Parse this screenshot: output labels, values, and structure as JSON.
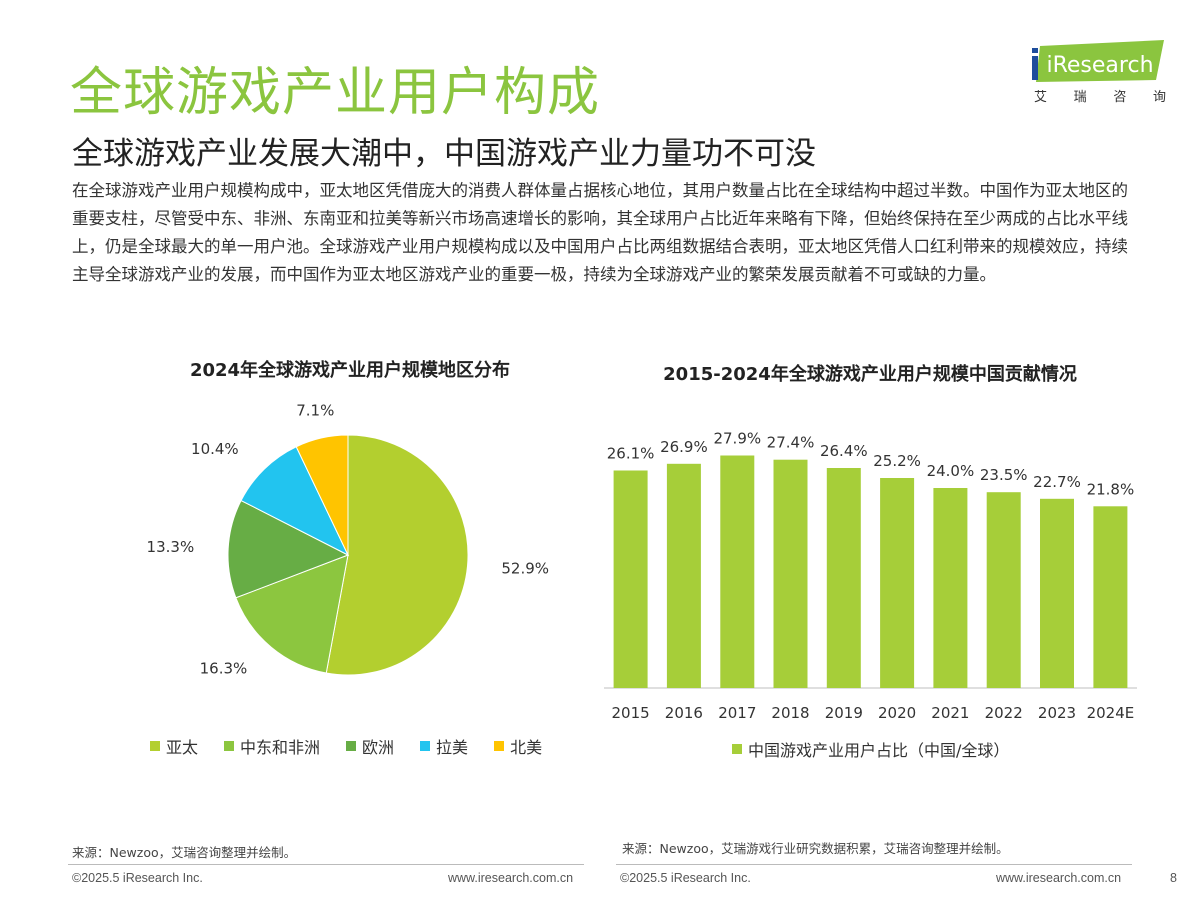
{
  "header": {
    "title": "全球游戏产业用户构成",
    "subtitle": "全球游戏产业发展大潮中，中国游戏产业力量功不可没",
    "body": "在全球游戏产业用户规模构成中，亚太地区凭借庞大的消费人群体量占据核心地位，其用户数量占比在全球结构中超过半数。中国作为亚太地区的重要支柱，尽管受中东、非洲、东南亚和拉美等新兴市场高速增长的影响，其全球用户占比近年来略有下降，但始终保持在至少两成的占比水平线上，仍是全球最大的单一用户池。全球游戏产业用户规模构成以及中国用户占比两组数据结合表明，亚太地区凭借人口红利带来的规模效应，持续主导全球游戏产业的发展，而中国作为亚太地区游戏产业的重要一极，持续为全球游戏产业的繁荣发展贡献着不可或缺的力量。"
  },
  "logo": {
    "name": "iResearch",
    "sub": [
      "艾",
      "瑞",
      "咨",
      "询"
    ],
    "color": "#8bc53f"
  },
  "chart_data": [
    {
      "type": "pie",
      "title": "2024年全球游戏产业用户规模地区分布",
      "slices": [
        {
          "label": "亚太",
          "value": 52.9,
          "display": "52.9%",
          "color": "#b3cf2f"
        },
        {
          "label": "中东和非洲",
          "value": 16.3,
          "display": "16.3%",
          "color": "#8cc63f"
        },
        {
          "label": "欧洲",
          "value": 13.3,
          "display": "13.3%",
          "color": "#67ad45"
        },
        {
          "label": "拉美",
          "value": 10.4,
          "display": "10.4%",
          "color": "#22c4ef"
        },
        {
          "label": "北美",
          "value": 7.1,
          "display": "7.1%",
          "color": "#ffc400"
        }
      ],
      "legend": "bottom"
    },
    {
      "type": "bar",
      "title": "2015-2024年全球游戏产业用户规模中国贡献情况",
      "categories": [
        "2015",
        "2016",
        "2017",
        "2018",
        "2019",
        "2020",
        "2021",
        "2022",
        "2023",
        "2024E"
      ],
      "series": [
        {
          "name": "中国游戏产业用户占比（中国/全球）",
          "values": [
            26.1,
            26.9,
            27.9,
            27.4,
            26.4,
            25.2,
            24.0,
            23.5,
            22.7,
            21.8
          ],
          "labels": [
            "26.1%",
            "26.9%",
            "27.9%",
            "27.4%",
            "26.4%",
            "25.2%",
            "24.0%",
            "23.5%",
            "22.7%",
            "21.8%"
          ],
          "color": "#a6ce39"
        }
      ],
      "ylim": [
        0,
        30
      ],
      "grid": false,
      "legend": "bottom"
    }
  ],
  "footer": {
    "source_left": "来源：Newzoo，艾瑞咨询整理并绘制。",
    "source_right": "来源：Newzoo，艾瑞游戏行业研究数据积累，艾瑞咨询整理并绘制。",
    "copyright": "©2025.5 iResearch Inc.",
    "website": "www.iresearch.com.cn",
    "page_number": "8"
  }
}
